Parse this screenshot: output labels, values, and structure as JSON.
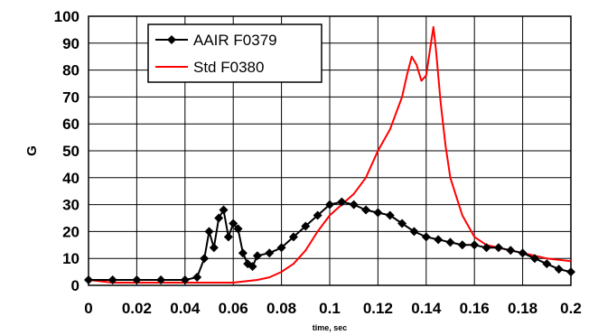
{
  "chart_data": {
    "type": "line",
    "title": "",
    "xlabel": "time, sec",
    "ylabel": "G",
    "xlim": [
      0,
      0.2
    ],
    "ylim": [
      0,
      100
    ],
    "x_ticks": [
      0,
      0.02,
      0.04,
      0.06,
      0.08,
      0.1,
      0.12,
      0.14,
      0.16,
      0.18,
      0.2
    ],
    "y_ticks": [
      0,
      10,
      20,
      30,
      40,
      50,
      60,
      70,
      80,
      90,
      100
    ],
    "grid": true,
    "legend_position": "top-left",
    "series": [
      {
        "name": "AAIR F0379",
        "color": "#000000",
        "marker": "diamond",
        "x": [
          0,
          0.01,
          0.02,
          0.03,
          0.04,
          0.045,
          0.048,
          0.05,
          0.052,
          0.054,
          0.056,
          0.058,
          0.06,
          0.062,
          0.064,
          0.066,
          0.068,
          0.07,
          0.075,
          0.08,
          0.085,
          0.09,
          0.095,
          0.1,
          0.105,
          0.11,
          0.115,
          0.12,
          0.125,
          0.13,
          0.135,
          0.14,
          0.145,
          0.15,
          0.155,
          0.16,
          0.165,
          0.17,
          0.175,
          0.18,
          0.185,
          0.19,
          0.195,
          0.2
        ],
        "y": [
          2,
          2,
          2,
          2,
          2,
          3,
          10,
          20,
          14,
          25,
          28,
          18,
          23,
          21,
          12,
          8,
          7,
          11,
          12,
          14,
          18,
          22,
          26,
          30,
          31,
          30,
          28,
          27,
          26,
          23,
          20,
          18,
          17,
          16,
          15,
          15,
          14,
          14,
          13,
          12,
          10,
          8,
          6,
          5
        ]
      },
      {
        "name": "Std F0380",
        "color": "#ff0000",
        "x": [
          0,
          0.01,
          0.02,
          0.03,
          0.04,
          0.05,
          0.06,
          0.07,
          0.075,
          0.08,
          0.085,
          0.09,
          0.095,
          0.1,
          0.105,
          0.11,
          0.115,
          0.12,
          0.125,
          0.13,
          0.132,
          0.134,
          0.136,
          0.138,
          0.14,
          0.142,
          0.143,
          0.144,
          0.146,
          0.148,
          0.15,
          0.155,
          0.16,
          0.165,
          0.17,
          0.175,
          0.18,
          0.19,
          0.2
        ],
        "y": [
          2,
          1,
          1,
          1,
          1,
          1,
          1,
          2,
          3,
          5,
          8,
          13,
          20,
          26,
          30,
          34,
          40,
          50,
          58,
          70,
          78,
          85,
          82,
          76,
          78,
          90,
          96,
          88,
          68,
          52,
          40,
          26,
          18,
          15,
          14,
          13,
          12,
          10,
          9
        ]
      }
    ]
  }
}
